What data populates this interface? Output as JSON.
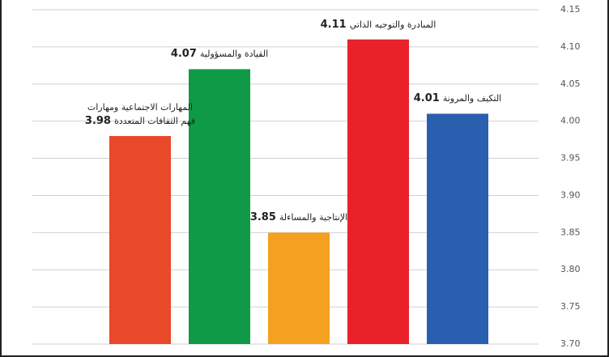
{
  "chart_data": {
    "type": "bar",
    "categories": [
      "المهارات الاجتماعية ومهارات فهم الثقافات المتعددة",
      "القيادة والمسؤولية",
      "الإنتاجية والمساءلة",
      "المبادرة والتوجيه الذاتي",
      "التكيف والمرونة"
    ],
    "values": [
      3.98,
      4.07,
      3.85,
      4.11,
      4.01
    ],
    "colors": [
      "#e8492a",
      "#0f9a48",
      "#f4a020",
      "#e82228",
      "#2a5fb0"
    ],
    "ylim": [
      3.7,
      4.15
    ],
    "yticks": [
      {
        "value": 3.7,
        "label": "3.70"
      },
      3.75,
      {
        "value": 3.8,
        "label": "3.80"
      },
      3.85,
      {
        "value": 3.9,
        "label": "3.90"
      },
      3.95,
      {
        "value": 4.0,
        "label": "4.00"
      },
      4.05,
      {
        "value": 4.1,
        "label": "4.10"
      },
      4.15
    ],
    "grid": true
  }
}
